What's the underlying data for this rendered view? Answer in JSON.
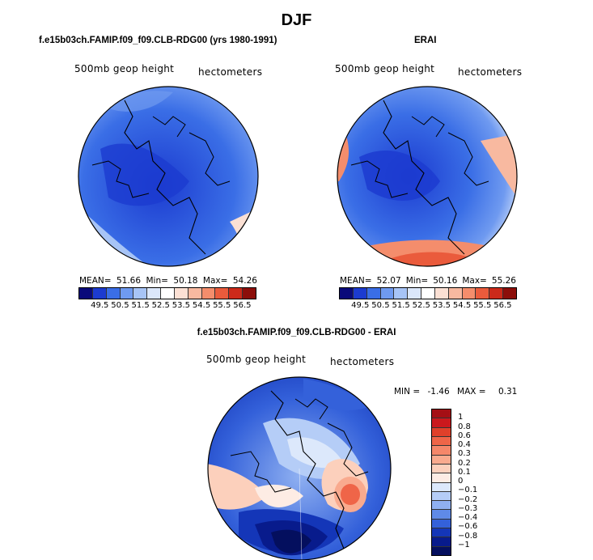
{
  "page": {
    "title": "DJF",
    "bottom_title": "f.e15b03ch.FAMIP.f09_f09.CLB-RDG00 - ERAI"
  },
  "chart_data": [
    {
      "type": "heatmap",
      "panel": "top-left",
      "title": "f.e15b03ch.FAMIP.f09_f09.CLB-RDG00 (yrs 1980-1991)",
      "left_label": "500mb geop height",
      "right_label": "hectometers",
      "projection": "north-polar-stereographic",
      "stats": {
        "mean_label": "MEAN=",
        "mean": "51.66",
        "min_label": "Min=",
        "min": "50.18",
        "max_label": "Max=",
        "max": "54.26"
      },
      "levels": [
        "49.5",
        "50.5",
        "51.5",
        "52.5",
        "53.5",
        "54.5",
        "55.5",
        "56.5"
      ],
      "colors": [
        "#0a0a7a",
        "#1c3bd0",
        "#3a6ee6",
        "#6f9af0",
        "#a7c4f6",
        "#dbe7fb",
        "#ffffff",
        "#fbe0d4",
        "#f8b9a0",
        "#f48d6c",
        "#ea5b3c",
        "#cc2a1a",
        "#8c0e0a"
      ]
    },
    {
      "type": "heatmap",
      "panel": "top-right",
      "title": "ERAI",
      "left_label": "500mb geop height",
      "right_label": "hectometers",
      "projection": "north-polar-stereographic",
      "stats": {
        "mean_label": "MEAN=",
        "mean": "52.07",
        "min_label": "Min=",
        "min": "50.16",
        "max_label": "Max=",
        "max": "55.26"
      },
      "levels": [
        "49.5",
        "50.5",
        "51.5",
        "52.5",
        "53.5",
        "54.5",
        "55.5",
        "56.5"
      ],
      "colors": [
        "#0a0a7a",
        "#1c3bd0",
        "#3a6ee6",
        "#6f9af0",
        "#a7c4f6",
        "#dbe7fb",
        "#ffffff",
        "#fbe0d4",
        "#f8b9a0",
        "#f48d6c",
        "#ea5b3c",
        "#cc2a1a",
        "#8c0e0a"
      ]
    },
    {
      "type": "heatmap",
      "panel": "bottom",
      "title": "f.e15b03ch.FAMIP.f09_f09.CLB-RDG00 - ERAI",
      "left_label": "500mb geop height",
      "right_label": "hectometers",
      "projection": "north-polar-stereographic",
      "stats": {
        "min_label": "MIN =",
        "min": "-1.46",
        "max_label": "MAX =",
        "max": "0.31"
      },
      "levels": [
        "1",
        "0.8",
        "0.6",
        "0.4",
        "0.3",
        "0.2",
        "0.1",
        "0",
        "−0.1",
        "−0.2",
        "−0.3",
        "−0.4",
        "−0.6",
        "−0.8",
        "−1"
      ],
      "colors": [
        "#a50f15",
        "#cb181d",
        "#e0402a",
        "#ef6548",
        "#f5876a",
        "#f9aa8e",
        "#fcd0bc",
        "#fdece4",
        "#dce8fb",
        "#b5cdf7",
        "#8fb0f1",
        "#5f8ae8",
        "#3461da",
        "#1436b8",
        "#081b8c",
        "#040f5e"
      ]
    }
  ]
}
